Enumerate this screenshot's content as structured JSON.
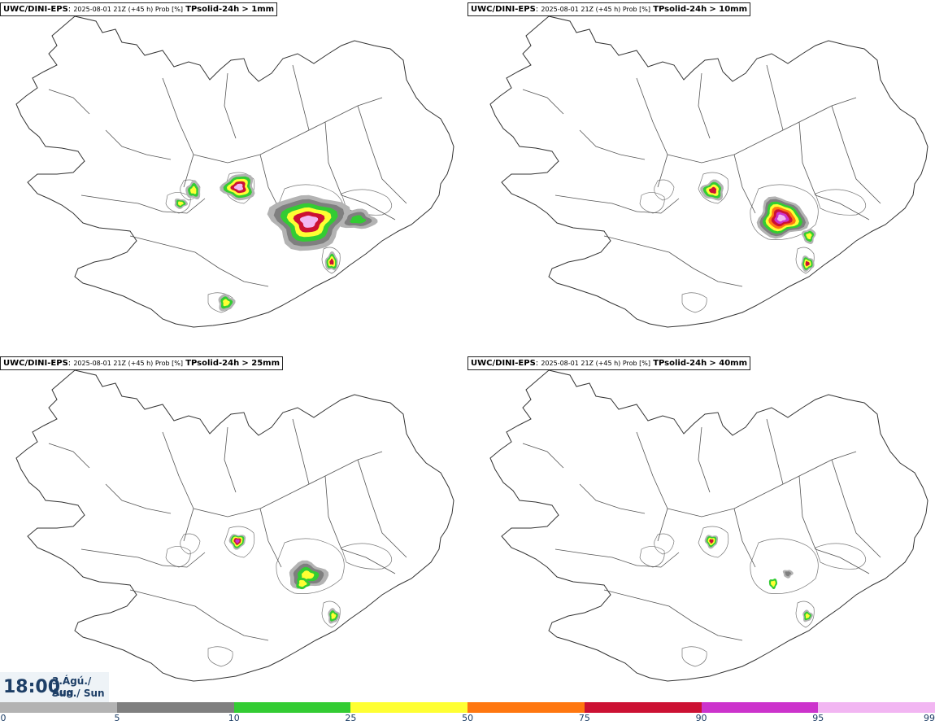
{
  "title_parts": {
    "model": "UWC/DINI-EPS",
    "run": "2025-08-01 21Z (+45 h) Prob [%]",
    "variable": "TPsolid-24h"
  },
  "panels": [
    {
      "threshold": "> 1mm"
    },
    {
      "threshold": "> 10mm"
    },
    {
      "threshold": "> 25mm"
    },
    {
      "threshold": "> 40mm"
    }
  ],
  "time": {
    "clock": "18:00",
    "date_line": "3.Ágú./ Aug",
    "day_line": "Sun./ Sun"
  },
  "legend": {
    "ticks": [
      "0",
      "5",
      "10",
      "25",
      "50",
      "75",
      "90",
      "95",
      "99"
    ],
    "colors": [
      "#ffffff",
      "#b3b3b3",
      "#7f7f7f",
      "#33cc33",
      "#ffff33",
      "#ff7710",
      "#cc1133",
      "#cc33cc",
      "#f2b6f2"
    ]
  },
  "map_colors": {
    "outline": "#333333",
    "border": "#555555"
  }
}
